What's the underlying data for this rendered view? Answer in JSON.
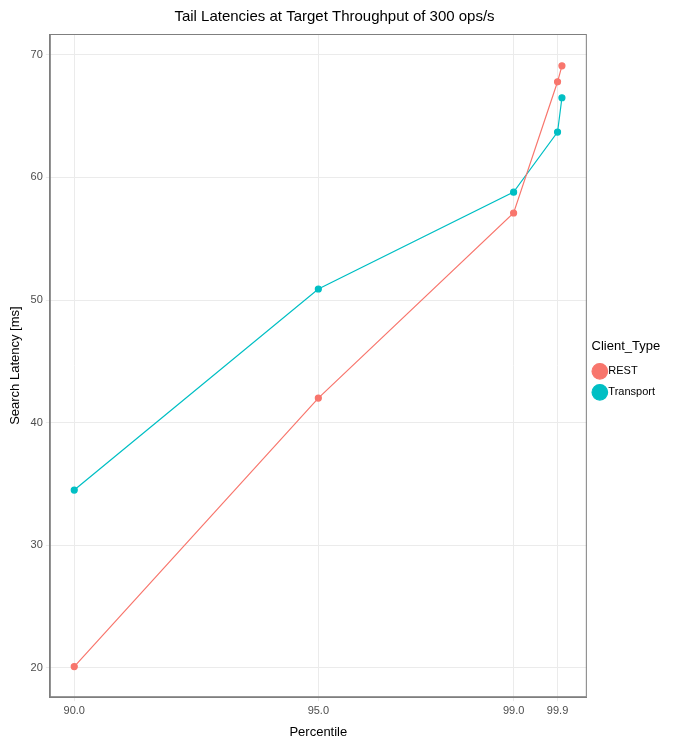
{
  "chart_data": {
    "type": "line",
    "title": "Tail Latencies at Target Throughput of 300 ops/s",
    "x_label": "Percentile",
    "y_label": "Search Latency [ms]",
    "legend_title": "Client_Type",
    "x": [
      90,
      95,
      99,
      99.9,
      99.99
    ],
    "series": [
      {
        "name": "REST",
        "color": "#F8766D",
        "marker": "circle",
        "line_style": "solid",
        "values": [
          20.1,
          42.0,
          57.1,
          67.8,
          69.1
        ]
      },
      {
        "name": "Transport",
        "color": "#00BFC4",
        "marker": "circle",
        "line_style": "solid",
        "values": [
          34.5,
          50.9,
          58.8,
          63.7,
          66.5
        ]
      }
    ],
    "xlim": [
      89.5,
      100.5
    ],
    "xticks": [
      {
        "value": 90,
        "label": "90.0"
      },
      {
        "value": 95,
        "label": "95.0"
      },
      {
        "value": 99,
        "label": "99.0"
      },
      {
        "value": 99.9,
        "label": "99.9"
      }
    ],
    "ylim": [
      17.6,
      71.7
    ],
    "yticks": [
      20,
      30,
      40,
      50,
      60,
      70
    ],
    "grid": true,
    "legend": "right"
  }
}
